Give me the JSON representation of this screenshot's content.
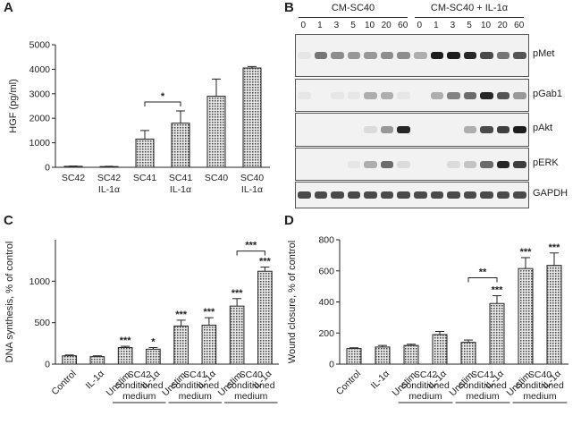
{
  "panels": {
    "a": "A",
    "b": "B",
    "c": "C",
    "d": "D"
  },
  "chartA": {
    "type": "bar",
    "categories": [
      [
        "SC42"
      ],
      [
        "SC42",
        "IL-1α"
      ],
      [
        "SC41"
      ],
      [
        "SC41",
        "IL-1α"
      ],
      [
        "SC40"
      ],
      [
        "SC40",
        "IL-1α"
      ]
    ],
    "values": [
      40,
      30,
      1150,
      1800,
      2900,
      4050
    ],
    "errors": [
      10,
      10,
      350,
      500,
      700,
      60
    ],
    "ylabel": "HGF (pg/ml)",
    "yticks": [
      0,
      1000,
      2000,
      3000,
      4000,
      5000
    ],
    "ylim": [
      0,
      5000
    ],
    "sig": [
      {
        "from": 2,
        "to": 3,
        "text": "*"
      }
    ]
  },
  "chartC": {
    "type": "bar",
    "categories": [
      [
        "Control"
      ],
      [
        "IL-1α"
      ],
      [
        "Unstim."
      ],
      [
        "IL-1α"
      ],
      [
        "Unstim."
      ],
      [
        "IL-1α"
      ],
      [
        "Unstim."
      ],
      [
        "IL-1α"
      ]
    ],
    "values": [
      100,
      90,
      200,
      180,
      460,
      470,
      700,
      1120
    ],
    "errors": [
      10,
      10,
      15,
      20,
      70,
      90,
      90,
      50
    ],
    "stars": [
      "",
      "",
      "***",
      "*",
      "***",
      "***",
      "***",
      "***"
    ],
    "ylabel": "DNA synthesis, % of control",
    "yticks": [
      0,
      500,
      1000
    ],
    "ylim": [
      0,
      1500
    ],
    "groups": [
      {
        "from": 2,
        "to": 3,
        "lines": [
          "SC42",
          "conditioned",
          "medium"
        ]
      },
      {
        "from": 4,
        "to": 5,
        "lines": [
          "SC41",
          "conditioned",
          "medium"
        ]
      },
      {
        "from": 6,
        "to": 7,
        "lines": [
          "SC40",
          "conditioned",
          "medium"
        ]
      }
    ],
    "sig": [
      {
        "from": 6,
        "to": 7,
        "text": "***"
      }
    ]
  },
  "chartD": {
    "type": "bar",
    "categories": [
      [
        "Control"
      ],
      [
        "IL-1α"
      ],
      [
        "Unstim."
      ],
      [
        "IL-1α"
      ],
      [
        "Unstim."
      ],
      [
        "IL-1α"
      ],
      [
        "Unstim."
      ],
      [
        "IL-1α"
      ]
    ],
    "values": [
      100,
      110,
      120,
      190,
      140,
      390,
      615,
      635
    ],
    "errors": [
      5,
      10,
      8,
      20,
      15,
      50,
      70,
      80
    ],
    "stars": [
      "",
      "",
      "",
      "",
      "",
      "***",
      "***",
      "***"
    ],
    "ylabel": "Wound closure, % of control",
    "yticks": [
      0,
      200,
      400,
      600,
      800
    ],
    "ylim": [
      0,
      800
    ],
    "groups": [
      {
        "from": 2,
        "to": 3,
        "lines": [
          "SC42",
          "conditioned",
          "medium"
        ]
      },
      {
        "from": 4,
        "to": 5,
        "lines": [
          "SC41",
          "conditioned",
          "medium"
        ]
      },
      {
        "from": 6,
        "to": 7,
        "lines": [
          "SC40",
          "conditioned",
          "medium"
        ]
      }
    ],
    "sig": [
      {
        "from": 4,
        "to": 5,
        "text": "**"
      }
    ]
  },
  "blot": {
    "conditions": [
      "CM-SC40",
      "CM-SC40 + IL-1α"
    ],
    "lanes": [
      "0",
      "1",
      "3",
      "5",
      "10",
      "20",
      "60",
      "0",
      "1",
      "3",
      "5",
      "10",
      "20",
      "60"
    ],
    "rows": [
      {
        "label": "pMet",
        "intensity": [
          0.05,
          0.55,
          0.45,
          0.4,
          0.4,
          0.45,
          0.45,
          0.3,
          0.95,
          0.95,
          0.9,
          0.75,
          0.55,
          0.7
        ]
      },
      {
        "label": "pGab1",
        "intensity": [
          0.05,
          0.0,
          0.05,
          0.05,
          0.3,
          0.3,
          0.05,
          0.0,
          0.3,
          0.5,
          0.6,
          0.9,
          0.7,
          0.4
        ]
      },
      {
        "label": "pAkt",
        "intensity": [
          0.0,
          0.0,
          0.0,
          0.0,
          0.1,
          0.4,
          0.9,
          0.0,
          0.0,
          0.0,
          0.3,
          0.75,
          0.8,
          0.95
        ]
      },
      {
        "label": "pERK",
        "intensity": [
          0.0,
          0.0,
          0.0,
          0.05,
          0.3,
          0.6,
          0.1,
          0.0,
          0.0,
          0.1,
          0.2,
          0.6,
          0.9,
          0.8
        ]
      },
      {
        "label": "GAPDH",
        "intensity": [
          0.75,
          0.75,
          0.75,
          0.75,
          0.75,
          0.75,
          0.75,
          0.75,
          0.75,
          0.75,
          0.75,
          0.75,
          0.75,
          0.75
        ]
      }
    ]
  },
  "colors": {
    "bar_fill": "#c9c9c9",
    "bar_stroke": "#222222",
    "axis": "#222222"
  }
}
